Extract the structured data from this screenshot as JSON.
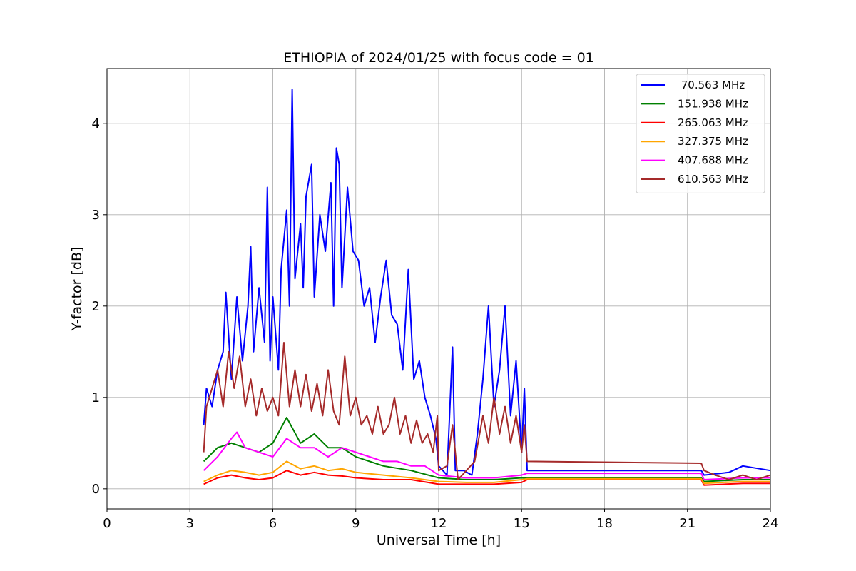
{
  "chart_data": {
    "type": "line",
    "title": "ETHIOPIA of 2024/01/25 with focus code = 01",
    "xlabel": "Universal Time [h]",
    "ylabel": "Y-factor [dB]",
    "xlim": [
      0,
      24
    ],
    "ylim": [
      -0.22,
      4.6
    ],
    "xticks": [
      0,
      3,
      6,
      9,
      12,
      15,
      18,
      21,
      24
    ],
    "yticks": [
      0,
      1,
      2,
      3,
      4
    ],
    "grid": true,
    "legend_position": "top-right",
    "series": [
      {
        "name": " 70.563 MHz",
        "color": "#0000ff",
        "points": [
          [
            3.5,
            0.7
          ],
          [
            3.6,
            1.1
          ],
          [
            3.8,
            0.9
          ],
          [
            4.0,
            1.3
          ],
          [
            4.2,
            1.5
          ],
          [
            4.3,
            2.15
          ],
          [
            4.5,
            1.2
          ],
          [
            4.7,
            2.1
          ],
          [
            4.9,
            1.4
          ],
          [
            5.1,
            2.0
          ],
          [
            5.2,
            2.65
          ],
          [
            5.3,
            1.5
          ],
          [
            5.5,
            2.2
          ],
          [
            5.7,
            1.6
          ],
          [
            5.8,
            3.3
          ],
          [
            5.9,
            1.4
          ],
          [
            6.0,
            2.1
          ],
          [
            6.2,
            1.3
          ],
          [
            6.3,
            2.4
          ],
          [
            6.5,
            3.05
          ],
          [
            6.6,
            2.0
          ],
          [
            6.7,
            4.37
          ],
          [
            6.8,
            2.3
          ],
          [
            7.0,
            2.9
          ],
          [
            7.1,
            2.2
          ],
          [
            7.2,
            3.2
          ],
          [
            7.4,
            3.55
          ],
          [
            7.5,
            2.1
          ],
          [
            7.7,
            3.0
          ],
          [
            7.9,
            2.6
          ],
          [
            8.1,
            3.35
          ],
          [
            8.2,
            2.0
          ],
          [
            8.3,
            3.73
          ],
          [
            8.4,
            3.55
          ],
          [
            8.5,
            2.2
          ],
          [
            8.7,
            3.3
          ],
          [
            8.9,
            2.6
          ],
          [
            9.1,
            2.5
          ],
          [
            9.3,
            2.0
          ],
          [
            9.5,
            2.2
          ],
          [
            9.7,
            1.6
          ],
          [
            9.9,
            2.1
          ],
          [
            10.1,
            2.5
          ],
          [
            10.3,
            1.9
          ],
          [
            10.5,
            1.8
          ],
          [
            10.7,
            1.3
          ],
          [
            10.9,
            2.4
          ],
          [
            11.1,
            1.2
          ],
          [
            11.3,
            1.4
          ],
          [
            11.5,
            1.0
          ],
          [
            11.7,
            0.8
          ],
          [
            11.9,
            0.55
          ],
          [
            12.0,
            0.25
          ],
          [
            12.3,
            0.15
          ],
          [
            12.5,
            1.55
          ],
          [
            12.6,
            0.2
          ],
          [
            12.9,
            0.2
          ],
          [
            13.2,
            0.15
          ],
          [
            13.4,
            0.6
          ],
          [
            13.6,
            1.2
          ],
          [
            13.8,
            2.0
          ],
          [
            14.0,
            0.9
          ],
          [
            14.2,
            1.3
          ],
          [
            14.4,
            2.0
          ],
          [
            14.6,
            0.8
          ],
          [
            14.8,
            1.4
          ],
          [
            15.0,
            0.4
          ],
          [
            15.1,
            1.1
          ],
          [
            15.2,
            0.2
          ],
          [
            21.5,
            0.2
          ],
          [
            21.6,
            0.15
          ],
          [
            22.5,
            0.18
          ],
          [
            23.0,
            0.25
          ],
          [
            24.0,
            0.2
          ]
        ]
      },
      {
        "name": "151.938 MHz",
        "color": "#008000",
        "points": [
          [
            3.5,
            0.3
          ],
          [
            4.0,
            0.45
          ],
          [
            4.5,
            0.5
          ],
          [
            5.0,
            0.45
          ],
          [
            5.5,
            0.4
          ],
          [
            6.0,
            0.5
          ],
          [
            6.5,
            0.78
          ],
          [
            7.0,
            0.5
          ],
          [
            7.5,
            0.6
          ],
          [
            8.0,
            0.45
          ],
          [
            8.5,
            0.45
          ],
          [
            9.0,
            0.35
          ],
          [
            10.0,
            0.25
          ],
          [
            11.0,
            0.2
          ],
          [
            12.0,
            0.12
          ],
          [
            13.0,
            0.1
          ],
          [
            14.0,
            0.1
          ],
          [
            15.0,
            0.12
          ],
          [
            15.2,
            0.12
          ],
          [
            21.5,
            0.12
          ],
          [
            21.6,
            0.08
          ],
          [
            23.0,
            0.1
          ],
          [
            24.0,
            0.1
          ]
        ]
      },
      {
        "name": "265.063 MHz",
        "color": "#ff0000",
        "points": [
          [
            3.5,
            0.05
          ],
          [
            4.0,
            0.12
          ],
          [
            4.5,
            0.15
          ],
          [
            5.0,
            0.12
          ],
          [
            5.5,
            0.1
          ],
          [
            6.0,
            0.12
          ],
          [
            6.5,
            0.2
          ],
          [
            7.0,
            0.15
          ],
          [
            7.5,
            0.18
          ],
          [
            8.0,
            0.15
          ],
          [
            8.5,
            0.14
          ],
          [
            9.0,
            0.12
          ],
          [
            10.0,
            0.1
          ],
          [
            11.0,
            0.1
          ],
          [
            12.0,
            0.05
          ],
          [
            13.0,
            0.05
          ],
          [
            14.0,
            0.05
          ],
          [
            15.0,
            0.07
          ],
          [
            15.2,
            0.1
          ],
          [
            21.5,
            0.1
          ],
          [
            21.6,
            0.04
          ],
          [
            23.0,
            0.06
          ],
          [
            24.0,
            0.06
          ]
        ]
      },
      {
        "name": "327.375 MHz",
        "color": "#ffa500",
        "points": [
          [
            3.5,
            0.08
          ],
          [
            4.0,
            0.15
          ],
          [
            4.5,
            0.2
          ],
          [
            5.0,
            0.18
          ],
          [
            5.5,
            0.15
          ],
          [
            6.0,
            0.18
          ],
          [
            6.5,
            0.3
          ],
          [
            7.0,
            0.22
          ],
          [
            7.5,
            0.25
          ],
          [
            8.0,
            0.2
          ],
          [
            8.5,
            0.22
          ],
          [
            9.0,
            0.18
          ],
          [
            10.0,
            0.15
          ],
          [
            11.0,
            0.12
          ],
          [
            12.0,
            0.08
          ],
          [
            13.0,
            0.07
          ],
          [
            14.0,
            0.07
          ],
          [
            15.0,
            0.1
          ],
          [
            15.2,
            0.11
          ],
          [
            21.5,
            0.11
          ],
          [
            21.6,
            0.06
          ],
          [
            23.0,
            0.08
          ],
          [
            24.0,
            0.08
          ]
        ]
      },
      {
        "name": "407.688 MHz",
        "color": "#ff00ff",
        "points": [
          [
            3.5,
            0.2
          ],
          [
            4.0,
            0.35
          ],
          [
            4.5,
            0.55
          ],
          [
            4.7,
            0.62
          ],
          [
            5.0,
            0.45
          ],
          [
            5.5,
            0.4
          ],
          [
            6.0,
            0.35
          ],
          [
            6.5,
            0.55
          ],
          [
            7.0,
            0.45
          ],
          [
            7.5,
            0.45
          ],
          [
            8.0,
            0.35
          ],
          [
            8.5,
            0.45
          ],
          [
            9.0,
            0.4
          ],
          [
            9.5,
            0.35
          ],
          [
            10.0,
            0.3
          ],
          [
            10.5,
            0.3
          ],
          [
            11.0,
            0.25
          ],
          [
            11.5,
            0.25
          ],
          [
            12.0,
            0.15
          ],
          [
            13.0,
            0.12
          ],
          [
            14.0,
            0.12
          ],
          [
            15.0,
            0.15
          ],
          [
            15.2,
            0.17
          ],
          [
            21.5,
            0.17
          ],
          [
            21.6,
            0.1
          ],
          [
            23.0,
            0.12
          ],
          [
            24.0,
            0.12
          ]
        ]
      },
      {
        "name": "610.563 MHz",
        "color": "#a52a2a",
        "points": [
          [
            3.5,
            0.4
          ],
          [
            3.6,
            0.9
          ],
          [
            3.8,
            1.1
          ],
          [
            4.0,
            1.3
          ],
          [
            4.2,
            0.9
          ],
          [
            4.4,
            1.5
          ],
          [
            4.6,
            1.1
          ],
          [
            4.8,
            1.45
          ],
          [
            5.0,
            0.9
          ],
          [
            5.2,
            1.2
          ],
          [
            5.4,
            0.8
          ],
          [
            5.6,
            1.1
          ],
          [
            5.8,
            0.85
          ],
          [
            6.0,
            1.0
          ],
          [
            6.2,
            0.8
          ],
          [
            6.4,
            1.6
          ],
          [
            6.6,
            0.9
          ],
          [
            6.8,
            1.3
          ],
          [
            7.0,
            0.9
          ],
          [
            7.2,
            1.25
          ],
          [
            7.4,
            0.85
          ],
          [
            7.6,
            1.15
          ],
          [
            7.8,
            0.8
          ],
          [
            8.0,
            1.3
          ],
          [
            8.2,
            0.85
          ],
          [
            8.4,
            0.7
          ],
          [
            8.6,
            1.45
          ],
          [
            8.8,
            0.8
          ],
          [
            9.0,
            1.0
          ],
          [
            9.2,
            0.7
          ],
          [
            9.4,
            0.8
          ],
          [
            9.6,
            0.6
          ],
          [
            9.8,
            0.9
          ],
          [
            10.0,
            0.6
          ],
          [
            10.2,
            0.7
          ],
          [
            10.4,
            1.0
          ],
          [
            10.6,
            0.6
          ],
          [
            10.8,
            0.8
          ],
          [
            11.0,
            0.5
          ],
          [
            11.2,
            0.75
          ],
          [
            11.4,
            0.5
          ],
          [
            11.6,
            0.6
          ],
          [
            11.8,
            0.4
          ],
          [
            11.95,
            0.8
          ],
          [
            12.0,
            0.2
          ],
          [
            12.3,
            0.25
          ],
          [
            12.5,
            0.7
          ],
          [
            12.7,
            0.1
          ],
          [
            13.0,
            0.2
          ],
          [
            13.3,
            0.3
          ],
          [
            13.6,
            0.8
          ],
          [
            13.8,
            0.5
          ],
          [
            14.0,
            1.0
          ],
          [
            14.2,
            0.6
          ],
          [
            14.4,
            0.9
          ],
          [
            14.6,
            0.5
          ],
          [
            14.8,
            0.8
          ],
          [
            15.0,
            0.4
          ],
          [
            15.1,
            0.7
          ],
          [
            15.2,
            0.3
          ],
          [
            21.5,
            0.28
          ],
          [
            21.6,
            0.2
          ],
          [
            22.0,
            0.15
          ],
          [
            22.5,
            0.1
          ],
          [
            23.0,
            0.15
          ],
          [
            23.5,
            0.1
          ],
          [
            24.0,
            0.15
          ]
        ]
      }
    ]
  }
}
